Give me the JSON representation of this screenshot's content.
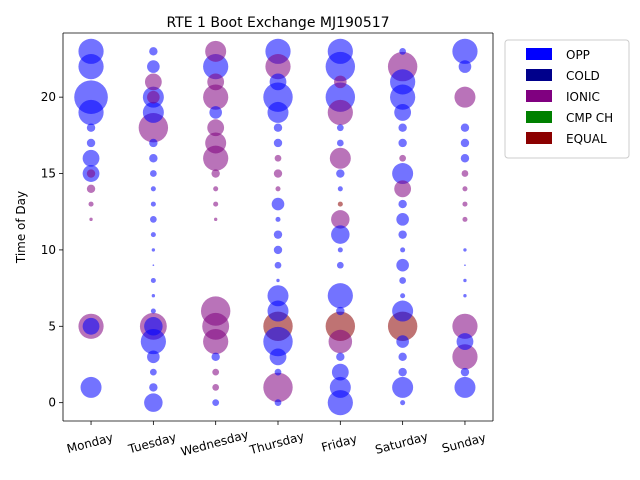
{
  "chart_data": {
    "type": "scatter",
    "title": "RTE 1 Boot Exchange MJ190517",
    "xlabel": "",
    "ylabel": "Time of Day",
    "categories": [
      "Monday",
      "Tuesday",
      "Wednesday",
      "Thursday",
      "Friday",
      "Saturday",
      "Sunday"
    ],
    "ylim": [
      -1.2,
      24.2
    ],
    "yticks": [
      0,
      5,
      10,
      15,
      20
    ],
    "grid": false,
    "legend_position": "outside-top-right",
    "colors": {
      "OPP": "#0000ff",
      "COLD": "#00008b",
      "IONIC": "#800080",
      "CMP CH": "#008000",
      "EQUAL": "#8b0000"
    },
    "legend": [
      {
        "name": "OPP",
        "color": "#0000ff"
      },
      {
        "name": "COLD",
        "color": "#00008b"
      },
      {
        "name": "IONIC",
        "color": "#800080"
      },
      {
        "name": "CMP CH",
        "color": "#008000"
      },
      {
        "name": "EQUAL",
        "color": "#8b0000"
      }
    ],
    "points": {
      "Monday": [
        {
          "h": 23,
          "s": 3,
          "t": "OPP"
        },
        {
          "h": 22,
          "s": 3,
          "t": "OPP"
        },
        {
          "h": 20,
          "s": 4,
          "t": "OPP"
        },
        {
          "h": 19,
          "s": 3,
          "t": "OPP"
        },
        {
          "h": 18,
          "s": 1,
          "t": "OPP"
        },
        {
          "h": 17,
          "s": 1,
          "t": "OPP"
        },
        {
          "h": 16,
          "s": 2,
          "t": "OPP"
        },
        {
          "h": 15,
          "s": 2,
          "t": "OPP"
        },
        {
          "h": 15,
          "s": 1,
          "t": "IONIC"
        },
        {
          "h": 14,
          "s": 1,
          "t": "IONIC"
        },
        {
          "h": 13,
          "s": 0.6,
          "t": "IONIC"
        },
        {
          "h": 12,
          "s": 0.4,
          "t": "IONIC"
        },
        {
          "h": 5,
          "s": 3,
          "t": "IONIC"
        },
        {
          "h": 5,
          "s": 2,
          "t": "OPP"
        },
        {
          "h": 1,
          "s": 2.5,
          "t": "OPP"
        }
      ],
      "Tuesday": [
        {
          "h": 23,
          "s": 1,
          "t": "OPP"
        },
        {
          "h": 22,
          "s": 1.5,
          "t": "OPP"
        },
        {
          "h": 21,
          "s": 2,
          "t": "IONIC"
        },
        {
          "h": 20,
          "s": 2.5,
          "t": "OPP"
        },
        {
          "h": 20,
          "s": 1.5,
          "t": "IONIC"
        },
        {
          "h": 19,
          "s": 2.5,
          "t": "OPP"
        },
        {
          "h": 18,
          "s": 3.5,
          "t": "IONIC"
        },
        {
          "h": 17,
          "s": 1,
          "t": "OPP"
        },
        {
          "h": 16,
          "s": 1,
          "t": "OPP"
        },
        {
          "h": 15,
          "s": 0.8,
          "t": "OPP"
        },
        {
          "h": 14,
          "s": 0.6,
          "t": "OPP"
        },
        {
          "h": 13,
          "s": 0.6,
          "t": "OPP"
        },
        {
          "h": 12,
          "s": 0.8,
          "t": "OPP"
        },
        {
          "h": 11,
          "s": 0.6,
          "t": "OPP"
        },
        {
          "h": 10,
          "s": 0.4,
          "t": "OPP"
        },
        {
          "h": 9,
          "s": 0.2,
          "t": "OPP"
        },
        {
          "h": 8,
          "s": 0.6,
          "t": "OPP"
        },
        {
          "h": 7,
          "s": 0.4,
          "t": "OPP"
        },
        {
          "h": 6,
          "s": 0.6,
          "t": "OPP"
        },
        {
          "h": 5,
          "s": 3.2,
          "t": "IONIC"
        },
        {
          "h": 5,
          "s": 2.2,
          "t": "OPP"
        },
        {
          "h": 4,
          "s": 3,
          "t": "OPP"
        },
        {
          "h": 3,
          "s": 1.5,
          "t": "OPP"
        },
        {
          "h": 2,
          "s": 0.8,
          "t": "OPP"
        },
        {
          "h": 1,
          "s": 1,
          "t": "OPP"
        },
        {
          "h": 0,
          "s": 2.2,
          "t": "OPP"
        }
      ],
      "Wednesday": [
        {
          "h": 23,
          "s": 2.5,
          "t": "IONIC"
        },
        {
          "h": 22,
          "s": 3,
          "t": "OPP"
        },
        {
          "h": 21,
          "s": 2,
          "t": "IONIC"
        },
        {
          "h": 20,
          "s": 3,
          "t": "IONIC"
        },
        {
          "h": 19,
          "s": 1.5,
          "t": "OPP"
        },
        {
          "h": 18,
          "s": 2,
          "t": "IONIC"
        },
        {
          "h": 17,
          "s": 2.5,
          "t": "IONIC"
        },
        {
          "h": 16,
          "s": 3,
          "t": "IONIC"
        },
        {
          "h": 15,
          "s": 1,
          "t": "IONIC"
        },
        {
          "h": 14,
          "s": 0.6,
          "t": "IONIC"
        },
        {
          "h": 13,
          "s": 0.6,
          "t": "IONIC"
        },
        {
          "h": 12,
          "s": 0.4,
          "t": "IONIC"
        },
        {
          "h": 6,
          "s": 3.5,
          "t": "IONIC"
        },
        {
          "h": 5,
          "s": 3.2,
          "t": "IONIC"
        },
        {
          "h": 4,
          "s": 3,
          "t": "IONIC"
        },
        {
          "h": 3,
          "s": 1,
          "t": "OPP"
        },
        {
          "h": 2,
          "s": 0.8,
          "t": "IONIC"
        },
        {
          "h": 1,
          "s": 0.8,
          "t": "IONIC"
        },
        {
          "h": 0,
          "s": 0.8,
          "t": "OPP"
        }
      ],
      "Thursday": [
        {
          "h": 23,
          "s": 3,
          "t": "OPP"
        },
        {
          "h": 22,
          "s": 3,
          "t": "IONIC"
        },
        {
          "h": 21,
          "s": 2,
          "t": "OPP"
        },
        {
          "h": 20,
          "s": 3.5,
          "t": "OPP"
        },
        {
          "h": 19,
          "s": 2.5,
          "t": "OPP"
        },
        {
          "h": 18,
          "s": 1,
          "t": "OPP"
        },
        {
          "h": 17,
          "s": 1,
          "t": "OPP"
        },
        {
          "h": 16,
          "s": 0.8,
          "t": "IONIC"
        },
        {
          "h": 15,
          "s": 1,
          "t": "IONIC"
        },
        {
          "h": 14,
          "s": 0.6,
          "t": "IONIC"
        },
        {
          "h": 13,
          "s": 1.5,
          "t": "OPP"
        },
        {
          "h": 12,
          "s": 0.6,
          "t": "OPP"
        },
        {
          "h": 11,
          "s": 1,
          "t": "OPP"
        },
        {
          "h": 10,
          "s": 1,
          "t": "OPP"
        },
        {
          "h": 9,
          "s": 0.8,
          "t": "OPP"
        },
        {
          "h": 8,
          "s": 0.4,
          "t": "OPP"
        },
        {
          "h": 7,
          "s": 2.5,
          "t": "OPP"
        },
        {
          "h": 6,
          "s": 2.5,
          "t": "OPP"
        },
        {
          "h": 5,
          "s": 3.5,
          "t": "EQUAL"
        },
        {
          "h": 4,
          "s": 3.5,
          "t": "OPP"
        },
        {
          "h": 3,
          "s": 2,
          "t": "OPP"
        },
        {
          "h": 2,
          "s": 0.8,
          "t": "OPP"
        },
        {
          "h": 1,
          "s": 3.5,
          "t": "IONIC"
        },
        {
          "h": 0,
          "s": 0.8,
          "t": "OPP"
        }
      ],
      "Friday": [
        {
          "h": 23,
          "s": 3,
          "t": "OPP"
        },
        {
          "h": 22,
          "s": 3.5,
          "t": "OPP"
        },
        {
          "h": 21,
          "s": 1.5,
          "t": "IONIC"
        },
        {
          "h": 20,
          "s": 3.5,
          "t": "OPP"
        },
        {
          "h": 19,
          "s": 3,
          "t": "IONIC"
        },
        {
          "h": 18,
          "s": 0.8,
          "t": "OPP"
        },
        {
          "h": 17,
          "s": 0.8,
          "t": "OPP"
        },
        {
          "h": 16,
          "s": 2.5,
          "t": "IONIC"
        },
        {
          "h": 15,
          "s": 1,
          "t": "OPP"
        },
        {
          "h": 14,
          "s": 0.6,
          "t": "OPP"
        },
        {
          "h": 13,
          "s": 0.6,
          "t": "EQUAL"
        },
        {
          "h": 12,
          "s": 2.2,
          "t": "IONIC"
        },
        {
          "h": 11,
          "s": 2.2,
          "t": "OPP"
        },
        {
          "h": 10,
          "s": 0.6,
          "t": "OPP"
        },
        {
          "h": 9,
          "s": 0.8,
          "t": "OPP"
        },
        {
          "h": 7,
          "s": 3,
          "t": "OPP"
        },
        {
          "h": 6,
          "s": 1,
          "t": "OPP"
        },
        {
          "h": 5,
          "s": 3.5,
          "t": "EQUAL"
        },
        {
          "h": 4,
          "s": 2.8,
          "t": "IONIC"
        },
        {
          "h": 3,
          "s": 1,
          "t": "OPP"
        },
        {
          "h": 2,
          "s": 2,
          "t": "OPP"
        },
        {
          "h": 1,
          "s": 2.5,
          "t": "OPP"
        },
        {
          "h": 0,
          "s": 3,
          "t": "OPP"
        }
      ],
      "Saturday": [
        {
          "h": 23,
          "s": 0.8,
          "t": "OPP"
        },
        {
          "h": 22,
          "s": 3.5,
          "t": "IONIC"
        },
        {
          "h": 21,
          "s": 3,
          "t": "OPP"
        },
        {
          "h": 20,
          "s": 3,
          "t": "OPP"
        },
        {
          "h": 19,
          "s": 2,
          "t": "OPP"
        },
        {
          "h": 18,
          "s": 1,
          "t": "OPP"
        },
        {
          "h": 17,
          "s": 1,
          "t": "OPP"
        },
        {
          "h": 16,
          "s": 0.8,
          "t": "IONIC"
        },
        {
          "h": 15,
          "s": 2.5,
          "t": "OPP"
        },
        {
          "h": 14,
          "s": 2,
          "t": "IONIC"
        },
        {
          "h": 13,
          "s": 1,
          "t": "OPP"
        },
        {
          "h": 12,
          "s": 1.5,
          "t": "OPP"
        },
        {
          "h": 11,
          "s": 1,
          "t": "OPP"
        },
        {
          "h": 10,
          "s": 0.6,
          "t": "OPP"
        },
        {
          "h": 9,
          "s": 1.5,
          "t": "OPP"
        },
        {
          "h": 8,
          "s": 0.8,
          "t": "OPP"
        },
        {
          "h": 7,
          "s": 0.6,
          "t": "OPP"
        },
        {
          "h": 6,
          "s": 2.5,
          "t": "OPP"
        },
        {
          "h": 5,
          "s": 3.5,
          "t": "EQUAL"
        },
        {
          "h": 4,
          "s": 1.5,
          "t": "OPP"
        },
        {
          "h": 3,
          "s": 1,
          "t": "OPP"
        },
        {
          "h": 2,
          "s": 1,
          "t": "OPP"
        },
        {
          "h": 1,
          "s": 2.5,
          "t": "OPP"
        },
        {
          "h": 0,
          "s": 0.6,
          "t": "OPP"
        }
      ],
      "Sunday": [
        {
          "h": 23,
          "s": 3,
          "t": "OPP"
        },
        {
          "h": 22,
          "s": 1.5,
          "t": "OPP"
        },
        {
          "h": 20,
          "s": 2.5,
          "t": "IONIC"
        },
        {
          "h": 18,
          "s": 1,
          "t": "OPP"
        },
        {
          "h": 17,
          "s": 1,
          "t": "OPP"
        },
        {
          "h": 16,
          "s": 1,
          "t": "OPP"
        },
        {
          "h": 15,
          "s": 0.8,
          "t": "IONIC"
        },
        {
          "h": 14,
          "s": 0.6,
          "t": "IONIC"
        },
        {
          "h": 13,
          "s": 0.6,
          "t": "IONIC"
        },
        {
          "h": 12,
          "s": 0.6,
          "t": "IONIC"
        },
        {
          "h": 10,
          "s": 0.4,
          "t": "OPP"
        },
        {
          "h": 9,
          "s": 0.2,
          "t": "OPP"
        },
        {
          "h": 8,
          "s": 0.4,
          "t": "OPP"
        },
        {
          "h": 7,
          "s": 0.4,
          "t": "OPP"
        },
        {
          "h": 5,
          "s": 3,
          "t": "IONIC"
        },
        {
          "h": 4,
          "s": 2,
          "t": "OPP"
        },
        {
          "h": 3,
          "s": 3,
          "t": "IONIC"
        },
        {
          "h": 2,
          "s": 1,
          "t": "OPP"
        },
        {
          "h": 1,
          "s": 2.5,
          "t": "OPP"
        }
      ]
    }
  }
}
